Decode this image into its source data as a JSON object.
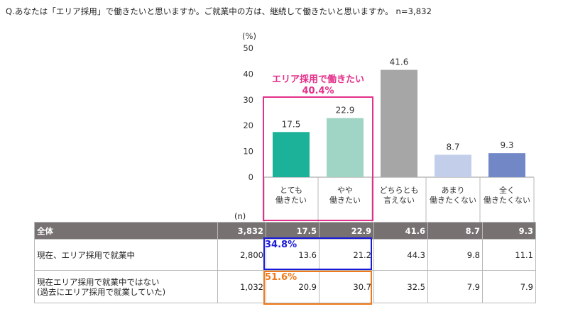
{
  "question": "Q.あなたは「エリア採用」で働きたいと思いますか。ご就業中の方は、継続して働きたいと思いますか。 n=3,832",
  "chart_data": {
    "type": "bar",
    "yunit": "(%)",
    "ylim": [
      0,
      50
    ],
    "yticks": [
      0,
      10,
      20,
      30,
      40,
      50
    ],
    "categories": [
      [
        "とても",
        "働きたい"
      ],
      [
        "やや",
        "働きたい"
      ],
      [
        "どちらとも",
        "言えない"
      ],
      [
        "あまり",
        "働きたくない"
      ],
      [
        "全く",
        "働きたくない"
      ]
    ],
    "values": [
      17.5,
      22.9,
      41.6,
      8.7,
      9.3
    ],
    "value_labels": [
      "17.5",
      "22.9",
      "41.6",
      "8.7",
      "9.3"
    ],
    "colors": [
      "#1cb29a",
      "#a0d4c5",
      "#a6a6a6",
      "#c3cfea",
      "#7187c6"
    ],
    "annotation": {
      "title": "エリア採用で働きたい",
      "value": "40.4%",
      "color": "#e3308a"
    }
  },
  "table": {
    "n_label": "(n)",
    "rows": [
      {
        "label": [
          "全体"
        ],
        "values": [
          "3,832",
          "17.5",
          "22.9",
          "41.6",
          "8.7",
          "9.3"
        ],
        "highlight": ""
      },
      {
        "label": [
          "現在、エリア採用で就業中"
        ],
        "values": [
          "2,800",
          "13.6",
          "21.2",
          "44.3",
          "9.8",
          "11.1"
        ],
        "highlight": "34.8%"
      },
      {
        "label": [
          "現在エリア採用で就業中ではない",
          "(過去にエリア採用で就業していた)"
        ],
        "values": [
          "1,032",
          "20.9",
          "30.7",
          "32.5",
          "7.9",
          "7.9"
        ],
        "highlight": "51.6%"
      }
    ]
  },
  "colors": {
    "header_bg": "#777172",
    "highlight_blue": "#1a1adb",
    "highlight_orange": "#f07a1a"
  }
}
